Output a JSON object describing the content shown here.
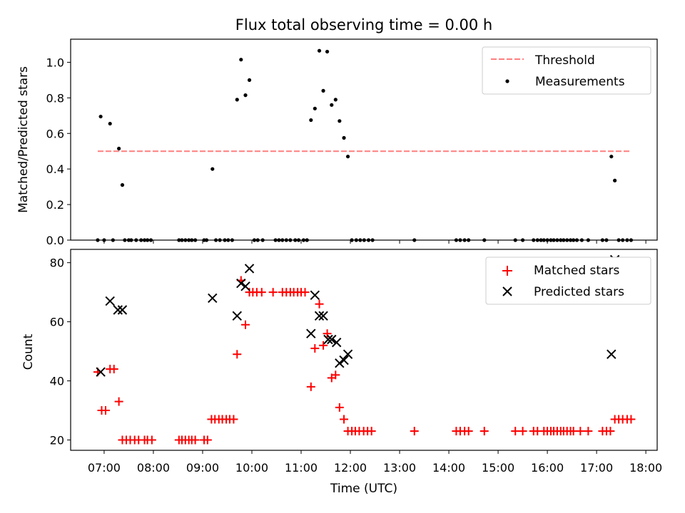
{
  "figure": {
    "title": "Flux total observing time = 0.00 h",
    "xlabel": "Time (UTC)",
    "xticks": [
      "07:00",
      "08:00",
      "09:00",
      "10:00",
      "11:00",
      "12:00",
      "13:00",
      "14:00",
      "15:00",
      "16:00",
      "17:00",
      "18:00"
    ]
  },
  "colors": {
    "threshold": "#ff7f7f",
    "measurement": "#000000",
    "matched": "#ff0000",
    "predicted": "#000000"
  },
  "chart_data": [
    {
      "type": "scatter",
      "ylabel": "Matched/Predicted stars",
      "xlim": [
        6.32,
        18.23
      ],
      "ylim": [
        0,
        1.13
      ],
      "yticks": [
        "0.0",
        "0.2",
        "0.4",
        "0.6",
        "0.8",
        "1.0"
      ],
      "ytick_values": [
        0,
        0.2,
        0.4,
        0.6,
        0.8,
        1.0
      ],
      "grid": false,
      "legend_position": "upper right",
      "threshold": {
        "name": "Threshold",
        "y": 0.5,
        "x_range": [
          6.87,
          17.7
        ],
        "style": "dashed"
      },
      "series": [
        {
          "name": "Measurements",
          "points": [
            [
              6.87,
              0
            ],
            [
              6.93,
              0.695
            ],
            [
              7.0,
              0
            ],
            [
              7.12,
              0.655
            ],
            [
              7.18,
              0
            ],
            [
              7.3,
              0.515
            ],
            [
              7.37,
              0.31
            ],
            [
              7.42,
              0
            ],
            [
              7.5,
              0
            ],
            [
              7.55,
              0
            ],
            [
              7.65,
              0
            ],
            [
              7.75,
              0
            ],
            [
              7.82,
              0
            ],
            [
              7.88,
              0
            ],
            [
              7.95,
              0
            ],
            [
              8.52,
              0
            ],
            [
              8.58,
              0
            ],
            [
              8.65,
              0
            ],
            [
              8.72,
              0
            ],
            [
              8.78,
              0
            ],
            [
              8.85,
              0
            ],
            [
              9.03,
              0
            ],
            [
              9.08,
              0
            ],
            [
              9.2,
              0.4
            ],
            [
              9.27,
              0
            ],
            [
              9.35,
              0
            ],
            [
              9.45,
              0
            ],
            [
              9.52,
              0
            ],
            [
              9.6,
              0
            ],
            [
              9.7,
              0.79
            ],
            [
              9.78,
              1.015
            ],
            [
              9.87,
              0.815
            ],
            [
              9.95,
              0.9
            ],
            [
              10.05,
              0
            ],
            [
              10.12,
              0
            ],
            [
              10.22,
              0
            ],
            [
              10.48,
              0
            ],
            [
              10.55,
              0
            ],
            [
              10.62,
              0
            ],
            [
              10.7,
              0
            ],
            [
              10.78,
              0
            ],
            [
              10.88,
              0
            ],
            [
              10.95,
              0
            ],
            [
              11.05,
              0
            ],
            [
              11.12,
              0
            ],
            [
              11.2,
              0.675
            ],
            [
              11.28,
              0.74
            ],
            [
              11.37,
              1.065
            ],
            [
              11.45,
              0.84
            ],
            [
              11.53,
              1.06
            ],
            [
              11.62,
              0.76
            ],
            [
              11.7,
              0.79
            ],
            [
              11.78,
              0.67
            ],
            [
              11.87,
              0.575
            ],
            [
              11.95,
              0.47
            ],
            [
              12.03,
              0
            ],
            [
              12.12,
              0
            ],
            [
              12.2,
              0
            ],
            [
              12.28,
              0
            ],
            [
              12.37,
              0
            ],
            [
              12.45,
              0
            ],
            [
              13.3,
              0
            ],
            [
              14.15,
              0
            ],
            [
              14.23,
              0
            ],
            [
              14.32,
              0
            ],
            [
              14.4,
              0
            ],
            [
              14.72,
              0
            ],
            [
              15.35,
              0
            ],
            [
              15.5,
              0
            ],
            [
              15.72,
              0
            ],
            [
              15.8,
              0
            ],
            [
              15.87,
              0
            ],
            [
              15.93,
              0
            ],
            [
              16.0,
              0
            ],
            [
              16.07,
              0
            ],
            [
              16.13,
              0
            ],
            [
              16.2,
              0
            ],
            [
              16.27,
              0
            ],
            [
              16.33,
              0
            ],
            [
              16.4,
              0
            ],
            [
              16.47,
              0
            ],
            [
              16.53,
              0
            ],
            [
              16.6,
              0
            ],
            [
              16.7,
              0
            ],
            [
              16.83,
              0
            ],
            [
              17.12,
              0
            ],
            [
              17.2,
              0
            ],
            [
              17.3,
              0.47
            ],
            [
              17.37,
              0.335
            ],
            [
              17.45,
              0
            ],
            [
              17.53,
              0
            ],
            [
              17.62,
              0
            ],
            [
              17.7,
              0
            ]
          ]
        }
      ]
    },
    {
      "type": "scatter",
      "ylabel": "Count",
      "xlim": [
        6.32,
        18.23
      ],
      "ylim": [
        16.5,
        84.5
      ],
      "yticks": [
        "20",
        "40",
        "60",
        "80"
      ],
      "ytick_values": [
        20,
        40,
        60,
        80
      ],
      "grid": false,
      "legend_position": "upper right",
      "series": [
        {
          "name": "Matched stars",
          "marker": "plus",
          "points": [
            [
              6.87,
              43
            ],
            [
              6.95,
              30
            ],
            [
              7.03,
              30
            ],
            [
              7.12,
              44
            ],
            [
              7.2,
              44
            ],
            [
              7.3,
              33
            ],
            [
              7.37,
              20
            ],
            [
              7.45,
              20
            ],
            [
              7.53,
              20
            ],
            [
              7.62,
              20
            ],
            [
              7.7,
              20
            ],
            [
              7.82,
              20
            ],
            [
              7.88,
              20
            ],
            [
              7.97,
              20
            ],
            [
              8.52,
              20
            ],
            [
              8.58,
              20
            ],
            [
              8.65,
              20
            ],
            [
              8.72,
              20
            ],
            [
              8.78,
              20
            ],
            [
              8.85,
              20
            ],
            [
              9.03,
              20
            ],
            [
              9.1,
              20
            ],
            [
              9.18,
              27
            ],
            [
              9.25,
              27
            ],
            [
              9.33,
              27
            ],
            [
              9.4,
              27
            ],
            [
              9.48,
              27
            ],
            [
              9.55,
              27
            ],
            [
              9.63,
              27
            ],
            [
              9.7,
              49
            ],
            [
              9.78,
              74
            ],
            [
              9.87,
              59
            ],
            [
              9.95,
              70
            ],
            [
              10.02,
              70
            ],
            [
              10.1,
              70
            ],
            [
              10.2,
              70
            ],
            [
              10.43,
              70
            ],
            [
              10.62,
              70
            ],
            [
              10.7,
              70
            ],
            [
              10.78,
              70
            ],
            [
              10.85,
              70
            ],
            [
              10.93,
              70
            ],
            [
              11.0,
              70
            ],
            [
              11.08,
              70
            ],
            [
              11.2,
              38
            ],
            [
              11.28,
              51
            ],
            [
              11.37,
              66
            ],
            [
              11.45,
              52
            ],
            [
              11.53,
              56
            ],
            [
              11.62,
              41
            ],
            [
              11.7,
              42
            ],
            [
              11.78,
              31
            ],
            [
              11.87,
              27
            ],
            [
              11.95,
              23
            ],
            [
              12.03,
              23
            ],
            [
              12.1,
              23
            ],
            [
              12.18,
              23
            ],
            [
              12.27,
              23
            ],
            [
              12.35,
              23
            ],
            [
              12.43,
              23
            ],
            [
              13.3,
              23
            ],
            [
              14.15,
              23
            ],
            [
              14.23,
              23
            ],
            [
              14.32,
              23
            ],
            [
              14.4,
              23
            ],
            [
              14.72,
              23
            ],
            [
              15.35,
              23
            ],
            [
              15.5,
              23
            ],
            [
              15.72,
              23
            ],
            [
              15.8,
              23
            ],
            [
              15.93,
              23
            ],
            [
              16.0,
              23
            ],
            [
              16.07,
              23
            ],
            [
              16.13,
              23
            ],
            [
              16.2,
              23
            ],
            [
              16.27,
              23
            ],
            [
              16.33,
              23
            ],
            [
              16.4,
              23
            ],
            [
              16.47,
              23
            ],
            [
              16.53,
              23
            ],
            [
              16.67,
              23
            ],
            [
              16.83,
              23
            ],
            [
              17.12,
              23
            ],
            [
              17.2,
              23
            ],
            [
              17.28,
              23
            ],
            [
              17.37,
              27
            ],
            [
              17.45,
              27
            ],
            [
              17.53,
              27
            ],
            [
              17.62,
              27
            ],
            [
              17.7,
              27
            ]
          ]
        },
        {
          "name": "Predicted stars",
          "marker": "x",
          "points": [
            [
              6.93,
              43
            ],
            [
              7.12,
              67
            ],
            [
              7.28,
              64
            ],
            [
              7.37,
              64
            ],
            [
              9.2,
              68
            ],
            [
              9.7,
              62
            ],
            [
              9.78,
              73
            ],
            [
              9.87,
              72
            ],
            [
              9.95,
              78
            ],
            [
              11.2,
              56
            ],
            [
              11.28,
              69
            ],
            [
              11.37,
              62
            ],
            [
              11.45,
              62
            ],
            [
              11.55,
              54
            ],
            [
              11.62,
              54
            ],
            [
              11.72,
              53
            ],
            [
              11.78,
              46
            ],
            [
              11.87,
              47
            ],
            [
              11.95,
              49
            ],
            [
              17.3,
              49
            ],
            [
              17.37,
              81
            ]
          ]
        }
      ]
    }
  ]
}
